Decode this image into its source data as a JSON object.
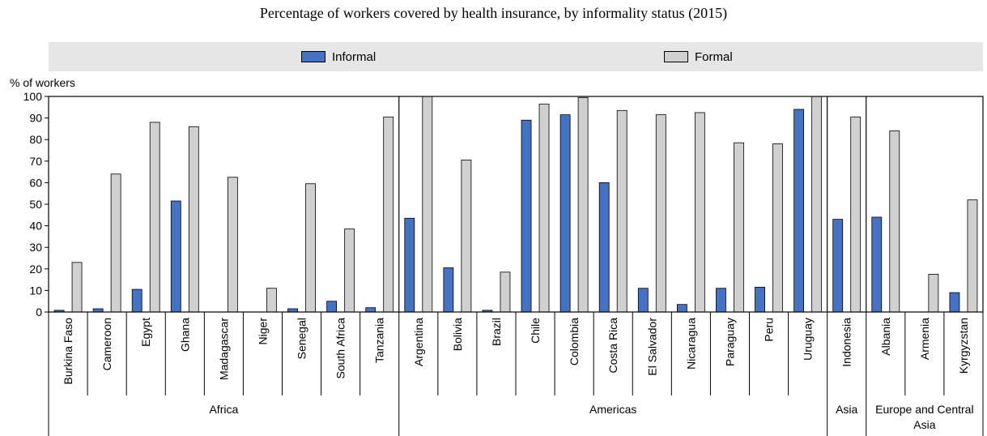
{
  "title": "Percentage of workers covered by health insurance, by informality status (2015)",
  "colors": {
    "informal": "#4472c4",
    "formal": "#d0d0d0",
    "legend_bg": "#e6e6e6"
  },
  "chart_data": {
    "type": "bar",
    "title": "Percentage of workers covered by health insurance, by informality status (2015)",
    "ylabel": "% of workers",
    "ylim": [
      0,
      100
    ],
    "yticks": [
      0,
      10,
      20,
      30,
      40,
      50,
      60,
      70,
      80,
      90,
      100
    ],
    "legend_position": "top",
    "categories": [
      "Burkina Faso",
      "Cameroon",
      "Egypt",
      "Ghana",
      "Madagascar",
      "Niger",
      "Senegal",
      "South Africa",
      "Tanzania",
      "Argentina",
      "Bolivia",
      "Brazil",
      "Chile",
      "Colombia",
      "Costa Rica",
      "El Salvador",
      "Nicaragua",
      "Paraguay",
      "Peru",
      "Uruguay",
      "Indonesia",
      "Albania",
      "Armenia",
      "Kyrgyzstan"
    ],
    "series": [
      {
        "name": "Informal",
        "values": [
          0.8,
          1.5,
          10.5,
          51.5,
          0,
          0,
          1.5,
          5,
          2,
          43.5,
          20.5,
          0.8,
          89,
          91.5,
          60,
          11,
          3.5,
          11,
          11.5,
          94,
          43,
          44,
          0,
          9
        ]
      },
      {
        "name": "Formal",
        "values": [
          23,
          64,
          88,
          86,
          62.5,
          11,
          59.5,
          38.5,
          90.5,
          100,
          70.5,
          18.5,
          96.5,
          99.5,
          93.5,
          91.5,
          92.5,
          78.5,
          78,
          100,
          90.5,
          84,
          17.5,
          52
        ]
      }
    ],
    "groups": [
      {
        "label": "Africa",
        "start": 0,
        "count": 9
      },
      {
        "label": "Americas",
        "start": 9,
        "count": 11
      },
      {
        "label": "Asia",
        "start": 20,
        "count": 1
      },
      {
        "label": "Europe and Central Asia",
        "start": 21,
        "count": 3
      }
    ],
    "grid": false
  }
}
